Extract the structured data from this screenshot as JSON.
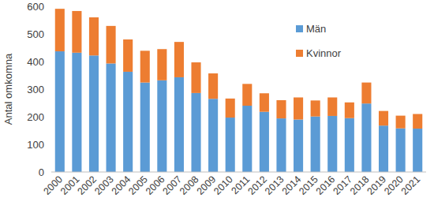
{
  "chart_data": {
    "type": "bar",
    "stacked": true,
    "grid": false,
    "legend": "upper right",
    "y_label": "Antal omkomna",
    "categories": [
      "2000",
      "2001",
      "2002",
      "2003",
      "2004",
      "2005",
      "2006",
      "2007",
      "2008",
      "2009",
      "2010",
      "2011",
      "2012",
      "2013",
      "2014",
      "2015",
      "2016",
      "2017",
      "2018",
      "2019",
      "2020",
      "2021"
    ],
    "series": [
      {
        "name": "Män",
        "color": "#5b9bd5",
        "values": [
          437,
          432,
          422,
          393,
          363,
          324,
          332,
          343,
          286,
          265,
          197,
          240,
          218,
          194,
          190,
          201,
          203,
          195,
          248,
          168,
          158,
          157
        ]
      },
      {
        "name": "Kvinnor",
        "color": "#ed7d31",
        "values": [
          154,
          151,
          138,
          136,
          117,
          115,
          113,
          128,
          111,
          92,
          69,
          79,
          67,
          66,
          80,
          58,
          67,
          57,
          76,
          53,
          46,
          53
        ]
      }
    ],
    "ylim": [
      0,
      600
    ],
    "yticks": [
      0,
      100,
      200,
      300,
      400,
      500,
      600
    ]
  }
}
